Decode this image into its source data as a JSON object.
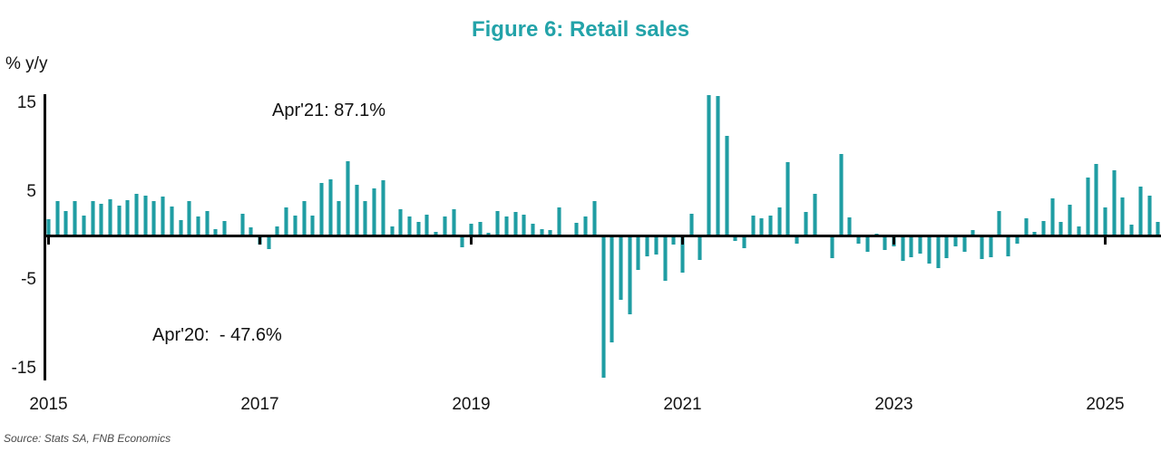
{
  "title": "Figure 6: Retail sales",
  "y_axis_unit": "% y/y",
  "source_note": "Source: Stats SA, FNB Economics",
  "annotations": {
    "apr21": "Apr'21: 87.1%",
    "apr20": "Apr'20:  - 47.6%"
  },
  "colors": {
    "bar": "#1f9da3",
    "title": "#23a3a9",
    "axis": "#000000",
    "source_text": "#4a4a4a"
  },
  "chart_data": {
    "type": "bar",
    "title": "Figure 6: Retail sales",
    "ylabel": "% y/y",
    "frequency": "monthly",
    "start": "2015-01",
    "end": "2025-07",
    "ylim": [
      -16,
      16
    ],
    "yticks": [
      15,
      5,
      -5,
      -15
    ],
    "xticks": [
      "2015",
      "2017",
      "2019",
      "2021",
      "2023",
      "2025"
    ],
    "grid": false,
    "legend": "none",
    "clipped_points": [
      {
        "month": "2020-04",
        "value": -47.6
      },
      {
        "month": "2021-04",
        "value": 87.1
      }
    ],
    "values": [
      1.9,
      4.0,
      2.8,
      4.0,
      2.3,
      3.9,
      3.6,
      4.2,
      3.4,
      4.1,
      4.8,
      4.6,
      3.9,
      4.5,
      3.3,
      1.8,
      3.9,
      2.2,
      2.8,
      0.8,
      1.7,
      0.1,
      2.5,
      1.0,
      -1.0,
      -1.5,
      1.1,
      3.2,
      2.3,
      3.9,
      2.3,
      6.0,
      6.4,
      4.0,
      8.5,
      5.8,
      4.0,
      5.4,
      6.3,
      1.1,
      3.0,
      2.2,
      1.6,
      2.4,
      0.5,
      2.2,
      3.0,
      -1.3,
      1.4,
      1.6,
      0.4,
      2.8,
      2.2,
      2.7,
      2.4,
      1.4,
      0.8,
      0.7,
      3.2,
      -0.2,
      1.5,
      2.2,
      3.9,
      -47.6,
      -12.0,
      -7.2,
      -8.9,
      -3.8,
      -2.3,
      -2.1,
      -5.1,
      -1.0,
      -4.2,
      2.5,
      -2.7,
      87.1,
      15.8,
      11.3,
      -0.6,
      -1.4,
      2.3,
      2.0,
      2.3,
      3.2,
      8.4,
      -0.9,
      2.7,
      4.8,
      -0.2,
      -2.5,
      9.3,
      2.1,
      -0.9,
      -1.8,
      0.3,
      -1.6,
      -1.2,
      -2.8,
      -2.4,
      -2.0,
      -3.1,
      -3.6,
      -2.5,
      -1.2,
      -1.8,
      0.7,
      -2.6,
      -2.4,
      2.8,
      -2.3,
      -0.9,
      2.0,
      0.5,
      1.7,
      4.3,
      1.6,
      3.5,
      1.1,
      6.6,
      8.2,
      3.2,
      7.4,
      4.4,
      1.3,
      5.6,
      4.6,
      1.6
    ]
  }
}
